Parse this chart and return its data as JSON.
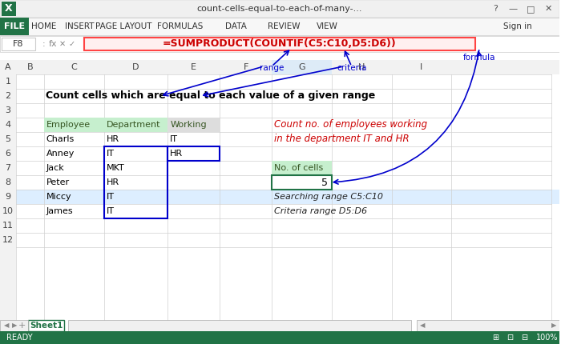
{
  "title_bar_color": "#217346",
  "title_bar_text": "count-cells-equal-to-each-of-many-...",
  "menu_items": [
    "FILE",
    "HOME",
    "INSERT",
    "PAGE LAYOUT",
    "FORMULAS",
    "DATA",
    "REVIEW",
    "VIEW"
  ],
  "file_btn_color": "#217346",
  "formula_bar_cell": "F8",
  "formula_text": "=SUMPRODUCT(COUNTIF(C5:C10,D5:D6))",
  "sheet_title": "Count cells which are equal to each value of a given range",
  "col_headers": [
    "A",
    "B",
    "C",
    "D",
    "E",
    "F",
    "G",
    "H",
    "I"
  ],
  "row_headers": [
    "1",
    "2",
    "3",
    "4",
    "5",
    "6",
    "7",
    "8",
    "9",
    "10",
    "11",
    "12"
  ],
  "employees": [
    "Charls",
    "Anney",
    "Jack",
    "Peter",
    "Miccy",
    "James"
  ],
  "departments": [
    "HR",
    "IT",
    "MKT",
    "HR",
    "IT",
    "IT"
  ],
  "working": [
    "IT",
    "HR"
  ],
  "no_of_cells_label": "No. of cells",
  "no_of_cells_value": "5",
  "search_range_text": "Searching range C5:C10",
  "criteria_range_text": "Criteria range D5:D6",
  "count_desc_line1": "Count no. of employees working",
  "count_desc_line2": "in the department IT and HR",
  "range_label": "range",
  "criteria_label": "criteria",
  "formula_label": "formula",
  "bg_color": "#FFFFFF",
  "grid_color": "#D0D0D0",
  "header_color": "#F2F2F2",
  "blue_border_color": "#0000CC",
  "formula_box_color": "#FF6666",
  "green_header_color": "#C6EFCE",
  "selected_row_color": "#DDEBF7",
  "sheet_tab_color": "#217346",
  "status_bar_color": "#217346"
}
